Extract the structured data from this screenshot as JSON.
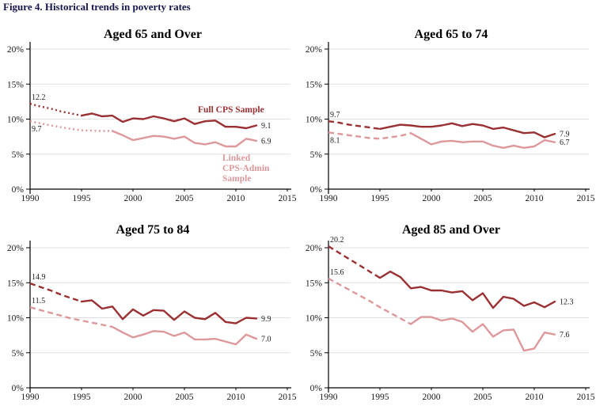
{
  "figure": {
    "title": "Figure 4. Historical trends in poverty rates"
  },
  "colors": {
    "full_cps": "#9b3033",
    "linked": "#dd989b",
    "grid": "#e0e0e0",
    "axis": "#000000",
    "value_label": "#222222"
  },
  "legend": {
    "full_label": "Full CPS Sample",
    "linked_label": "Linked\nCPS-Admin\nSample"
  },
  "chart_data": {
    "type": "line",
    "xlim": [
      1990,
      2015
    ],
    "ylim": [
      0,
      20
    ],
    "grid": "horizontal",
    "x_ticks": [
      1990,
      1995,
      2000,
      2005,
      2010,
      2015
    ],
    "y_tick_labels": [
      "0%",
      "5%",
      "10%",
      "15%",
      "20%"
    ],
    "years": [
      1990,
      1991,
      1992,
      1993,
      1994,
      1995,
      1996,
      1997,
      1998,
      1999,
      2000,
      2001,
      2002,
      2003,
      2004,
      2005,
      2006,
      2007,
      2008,
      2009,
      2010,
      2011,
      2012
    ],
    "panels": [
      {
        "title": "Aged 65 and Over",
        "series": [
          {
            "name": "Full CPS Sample",
            "color_key": "full_cps",
            "pre_style": "dotted",
            "transition": 1995,
            "values": [
              12.2,
              11.8,
              11.5,
              11.1,
              10.8,
              10.5,
              10.8,
              10.4,
              10.5,
              9.6,
              10.1,
              10.0,
              10.4,
              10.1,
              9.7,
              10.1,
              9.3,
              9.7,
              9.8,
              8.9,
              8.9,
              8.7,
              9.1
            ],
            "start_label": "12.2",
            "start_label_pos": "above",
            "end_label": "9.1"
          },
          {
            "name": "Linked CPS-Admin Sample",
            "color_key": "linked",
            "pre_style": "dotted",
            "transition": 1998,
            "values": [
              9.7,
              9.4,
              9.1,
              8.85,
              8.6,
              8.4,
              8.35,
              8.3,
              8.3,
              7.7,
              7.0,
              7.3,
              7.6,
              7.5,
              7.2,
              7.5,
              6.6,
              6.4,
              6.7,
              6.1,
              6.1,
              7.2,
              6.9
            ],
            "start_label": "9.7",
            "start_label_pos": "below",
            "end_label": "6.9"
          }
        ]
      },
      {
        "title": "Aged 65 to 74",
        "series": [
          {
            "name": "Full CPS Sample",
            "color_key": "full_cps",
            "pre_style": "dashed",
            "transition": 1995,
            "values": [
              9.7,
              9.5,
              9.2,
              9.0,
              8.8,
              8.6,
              8.9,
              9.2,
              9.1,
              8.9,
              8.9,
              9.1,
              9.4,
              9.0,
              9.3,
              9.1,
              8.6,
              8.8,
              8.4,
              8.0,
              8.1,
              7.4,
              7.9
            ],
            "start_label": "9.7",
            "start_label_pos": "above",
            "end_label": "7.9"
          },
          {
            "name": "Linked CPS-Admin Sample",
            "color_key": "linked",
            "pre_style": "dashed",
            "transition": 1998,
            "values": [
              8.1,
              7.9,
              7.7,
              7.5,
              7.3,
              7.2,
              7.4,
              7.6,
              8.0,
              7.2,
              6.4,
              6.8,
              6.9,
              6.7,
              6.8,
              6.8,
              6.2,
              5.9,
              6.2,
              5.9,
              6.1,
              7.0,
              6.7
            ],
            "start_label": "8.1",
            "start_label_pos": "below",
            "end_label": "6.7"
          }
        ]
      },
      {
        "title": "Aged 75 to 84",
        "series": [
          {
            "name": "Full CPS Sample",
            "color_key": "full_cps",
            "pre_style": "dashed",
            "transition": 1995,
            "values": [
              14.9,
              14.4,
              13.9,
              13.3,
              12.8,
              12.3,
              12.5,
              11.3,
              11.6,
              9.8,
              11.2,
              10.3,
              11.1,
              11.0,
              9.7,
              10.9,
              10.0,
              9.8,
              10.7,
              9.4,
              9.2,
              10.0,
              9.9
            ],
            "start_label": "14.9",
            "start_label_pos": "above",
            "end_label": "9.9"
          },
          {
            "name": "Linked CPS-Admin Sample",
            "color_key": "linked",
            "pre_style": "dashed",
            "transition": 1998,
            "values": [
              11.5,
              11.1,
              10.7,
              10.3,
              9.9,
              9.6,
              9.3,
              9.0,
              8.7,
              7.9,
              7.2,
              7.6,
              8.1,
              8.0,
              7.4,
              7.9,
              6.9,
              6.9,
              7.0,
              6.6,
              6.2,
              7.6,
              7.0
            ],
            "start_label": "11.5",
            "start_label_pos": "above",
            "end_label": "7.0"
          }
        ]
      },
      {
        "title": "Aged 85 and Over",
        "series": [
          {
            "name": "Full CPS Sample",
            "color_key": "full_cps",
            "pre_style": "dashed",
            "transition": 1995,
            "values": [
              20.2,
              19.3,
              18.4,
              17.5,
              16.6,
              15.7,
              16.6,
              15.8,
              14.2,
              14.4,
              13.9,
              13.9,
              13.6,
              13.8,
              12.5,
              13.5,
              11.4,
              13.0,
              12.7,
              11.7,
              12.2,
              11.5,
              12.3
            ],
            "start_label": "20.2",
            "start_label_pos": "above",
            "end_label": "12.3"
          },
          {
            "name": "Linked CPS-Admin Sample",
            "color_key": "linked",
            "pre_style": "dashed",
            "transition": 1998,
            "values": [
              15.6,
              14.8,
              14.0,
              13.2,
              12.4,
              11.5,
              10.7,
              9.9,
              9.1,
              10.1,
              10.1,
              9.6,
              9.9,
              9.4,
              8.0,
              9.1,
              7.3,
              8.2,
              8.3,
              5.3,
              5.6,
              7.9,
              7.6
            ],
            "start_label": "15.6",
            "start_label_pos": "above",
            "end_label": "7.6"
          }
        ]
      }
    ]
  }
}
